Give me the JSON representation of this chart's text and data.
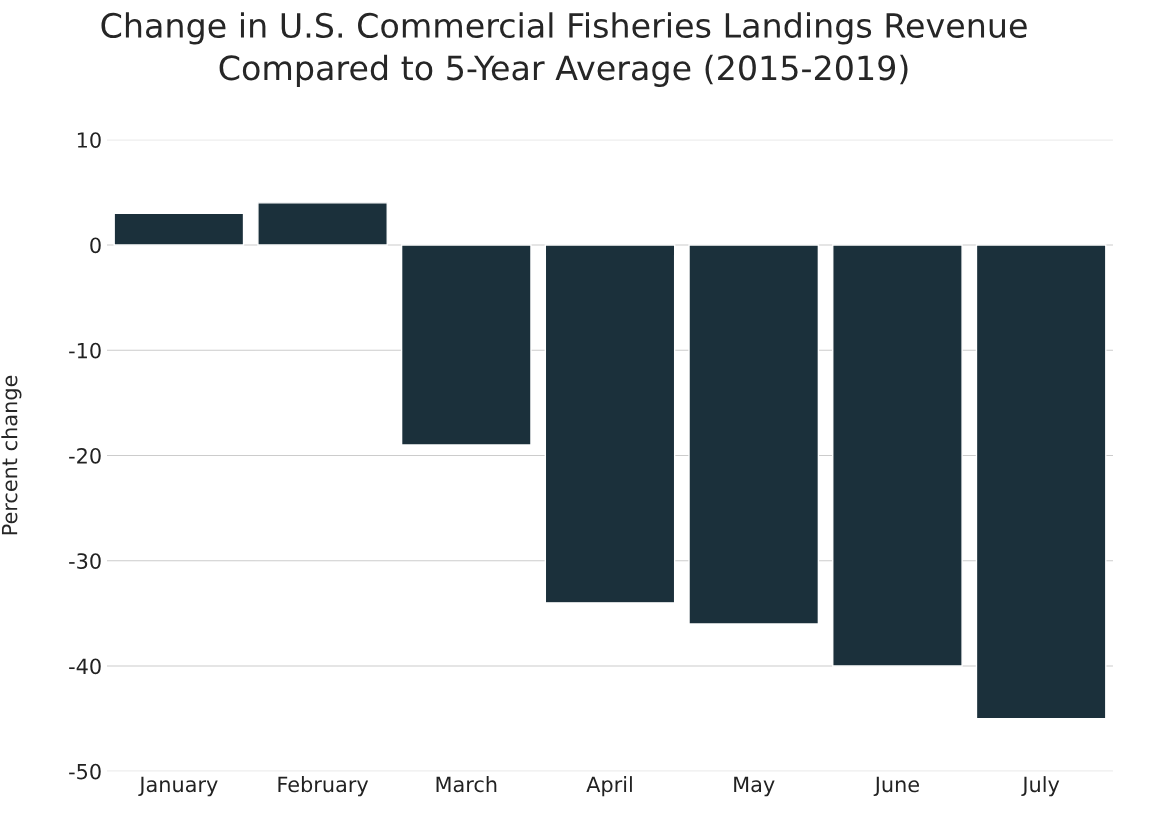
{
  "chart_data": {
    "type": "bar",
    "title": "Change in U.S. Commercial Fisheries Landings Revenue\nCompared to 5-Year Average (2015-2019)",
    "ylabel": "Percent change",
    "categories": [
      "January",
      "February",
      "March",
      "April",
      "May",
      "June",
      "July"
    ],
    "values": [
      3,
      4,
      -19,
      -34,
      -36,
      -40,
      -45
    ],
    "color": "#1b303b",
    "ylim": [
      -50,
      10
    ],
    "yticks": [
      -50,
      -40,
      -30,
      -20,
      -10,
      0,
      10
    ],
    "grid": "y",
    "legend": false
  }
}
